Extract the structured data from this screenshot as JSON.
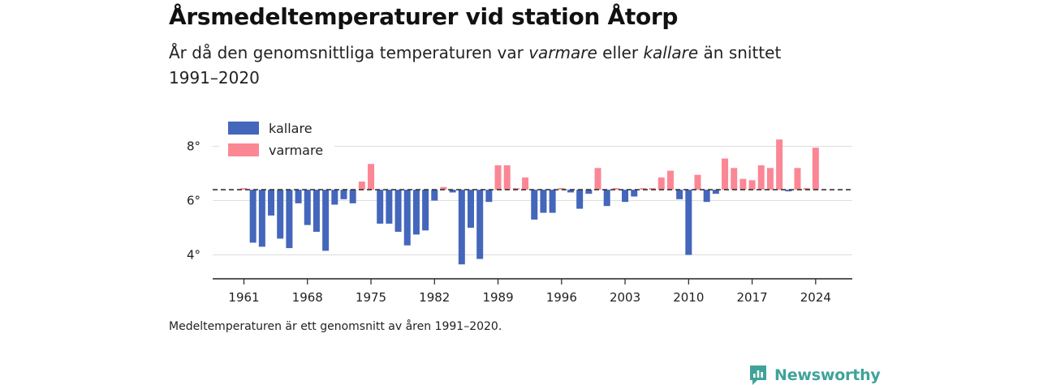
{
  "title": "Årsmedeltemperaturer vid station Åtorp",
  "subtitle": {
    "part1": "År då den genomsnittliga temperaturen var ",
    "warm_word": "varmare",
    "part2": " eller ",
    "cold_word": "kallare",
    "part3": " än snittet 1991–2020"
  },
  "note": "Medeltemperaturen är ett genomsnitt av åren 1991–2020.",
  "brand": "Newsworthy",
  "colors": {
    "cold": "#4466bb",
    "warm": "#fb8795",
    "baseline": "#333333",
    "grid": "#dddddd"
  },
  "chart_data": {
    "type": "bar",
    "baseline": 6.4,
    "ylim": [
      3.0,
      8.6
    ],
    "yticks": [
      4,
      6,
      8
    ],
    "ytick_labels": [
      "4°",
      "6°",
      "8°"
    ],
    "xticks": [
      1961,
      1968,
      1975,
      1982,
      1989,
      1996,
      2003,
      2010,
      2017,
      2024
    ],
    "xtick_labels": [
      "1961",
      "1968",
      "1975",
      "1982",
      "1989",
      "1996",
      "2003",
      "2010",
      "2017",
      "2024"
    ],
    "legend": [
      {
        "key": "cold",
        "label": "kallare"
      },
      {
        "key": "warm",
        "label": "varmare"
      }
    ],
    "legend_position": "top-left",
    "grid": true,
    "x": [
      1961,
      1962,
      1963,
      1964,
      1965,
      1966,
      1967,
      1968,
      1969,
      1970,
      1971,
      1972,
      1973,
      1974,
      1975,
      1976,
      1977,
      1978,
      1979,
      1980,
      1981,
      1982,
      1983,
      1984,
      1985,
      1986,
      1987,
      1988,
      1989,
      1990,
      1991,
      1992,
      1993,
      1994,
      1995,
      1996,
      1997,
      1998,
      1999,
      2000,
      2001,
      2002,
      2003,
      2004,
      2005,
      2006,
      2007,
      2008,
      2009,
      2010,
      2011,
      2012,
      2013,
      2014,
      2015,
      2016,
      2017,
      2018,
      2019,
      2020,
      2021,
      2022,
      2023,
      2024
    ],
    "values": [
      6.45,
      4.45,
      4.3,
      5.45,
      4.6,
      4.25,
      5.9,
      5.1,
      4.85,
      4.15,
      5.85,
      6.05,
      5.9,
      6.7,
      7.35,
      5.15,
      5.15,
      4.85,
      4.35,
      4.75,
      4.9,
      6.0,
      6.5,
      6.3,
      3.65,
      5.0,
      3.85,
      5.95,
      7.3,
      7.3,
      6.4,
      6.85,
      5.3,
      5.55,
      5.55,
      6.4,
      6.3,
      5.7,
      6.25,
      7.2,
      5.8,
      6.4,
      5.95,
      6.15,
      6.4,
      6.4,
      6.85,
      7.1,
      6.05,
      4.0,
      6.95,
      5.95,
      6.25,
      7.55,
      7.2,
      6.8,
      6.75,
      7.3,
      7.2,
      8.25,
      6.35,
      7.2,
      6.4,
      7.95
    ]
  }
}
